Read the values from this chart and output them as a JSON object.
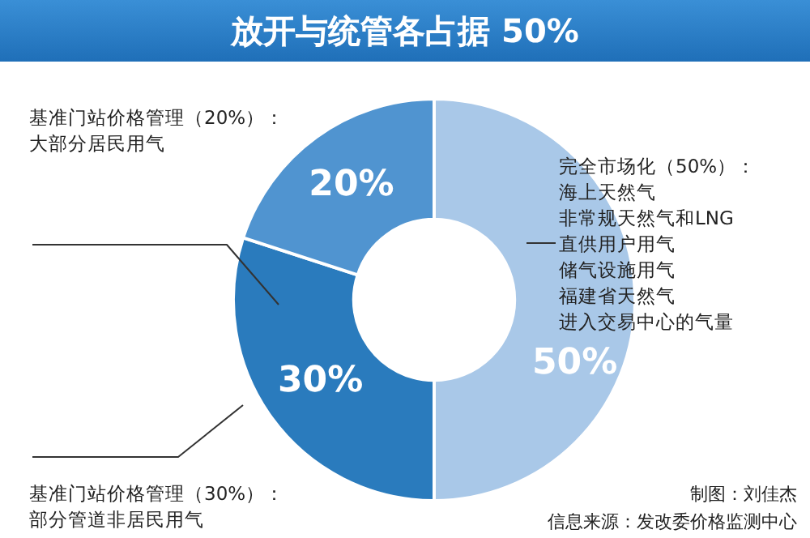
{
  "chart_data": {
    "type": "donut",
    "title": "放开与统管各占据 50%",
    "categories": [
      "完全市场化（50%）：海上天然气非常规天然气和LNG直供用户用气储气设施用气福建省天然气进入交易中心的气量",
      "基准门站价格管理（30%）：部分管道非居民用气",
      "基准门站价格管理（20%）：大部分居民用气"
    ],
    "values": [
      50,
      30,
      20
    ],
    "colors": [
      "#a9c8e8",
      "#2a7bbd",
      "#5094d0"
    ],
    "value_labels": [
      "50%",
      "30%",
      "20%"
    ],
    "annotations": [
      "制图：刘佳杰",
      "信息来源：发改委价格监测中心"
    ]
  }
}
